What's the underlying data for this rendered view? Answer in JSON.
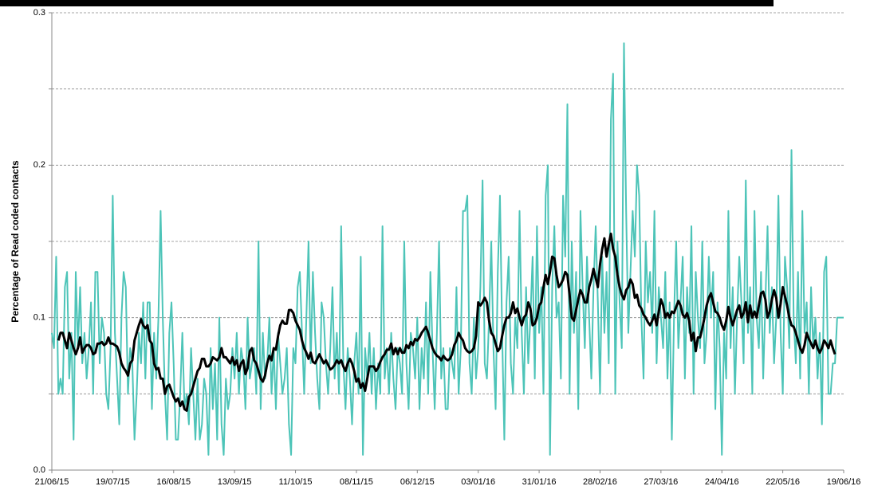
{
  "chart_data": {
    "type": "line",
    "y_label": "Percentage of Read coded contacts",
    "categories": [
      "21/06/15",
      null,
      null,
      null,
      null,
      null,
      null,
      null,
      null,
      null,
      null,
      null,
      null,
      null,
      null,
      null,
      null,
      null,
      null,
      null,
      null,
      null,
      null,
      null,
      null,
      null,
      null,
      null,
      "19/07/15",
      null,
      null,
      null,
      null,
      null,
      null,
      null,
      null,
      null,
      null,
      null,
      null,
      null,
      null,
      null,
      null,
      null,
      null,
      null,
      null,
      null,
      null,
      null,
      null,
      null,
      null,
      null,
      "16/08/15",
      null,
      null,
      null,
      null,
      null,
      null,
      null,
      null,
      null,
      null,
      null,
      null,
      null,
      null,
      null,
      null,
      null,
      null,
      null,
      null,
      null,
      null,
      null,
      null,
      null,
      null,
      null,
      "13/09/15",
      null,
      null,
      null,
      null,
      null,
      null,
      null,
      null,
      null,
      null,
      null,
      null,
      null,
      null,
      null,
      null,
      null,
      null,
      null,
      null,
      null,
      null,
      null,
      null,
      null,
      null,
      null,
      "11/10/15",
      null,
      null,
      null,
      null,
      null,
      null,
      null,
      null,
      null,
      null,
      null,
      null,
      null,
      null,
      null,
      null,
      null,
      null,
      null,
      null,
      null,
      null,
      null,
      null,
      null,
      null,
      null,
      "08/11/15",
      null,
      null,
      null,
      null,
      null,
      null,
      null,
      null,
      null,
      null,
      null,
      null,
      null,
      null,
      null,
      null,
      null,
      null,
      null,
      null,
      null,
      null,
      null,
      null,
      null,
      null,
      null,
      "06/12/15",
      null,
      null,
      null,
      null,
      null,
      null,
      null,
      null,
      null,
      null,
      null,
      null,
      null,
      null,
      null,
      null,
      null,
      null,
      null,
      null,
      null,
      null,
      null,
      null,
      null,
      null,
      null,
      "03/01/16",
      null,
      null,
      null,
      null,
      null,
      null,
      null,
      null,
      null,
      null,
      null,
      null,
      null,
      null,
      null,
      null,
      null,
      null,
      null,
      null,
      null,
      null,
      null,
      null,
      null,
      null,
      null,
      "31/01/16",
      null,
      null,
      null,
      null,
      null,
      null,
      null,
      null,
      null,
      null,
      null,
      null,
      null,
      null,
      null,
      null,
      null,
      null,
      null,
      null,
      null,
      null,
      null,
      null,
      null,
      null,
      null,
      "28/02/16",
      null,
      null,
      null,
      null,
      null,
      null,
      null,
      null,
      null,
      null,
      null,
      null,
      null,
      null,
      null,
      null,
      null,
      null,
      null,
      null,
      null,
      null,
      null,
      null,
      null,
      null,
      null,
      "27/03/16",
      null,
      null,
      null,
      null,
      null,
      null,
      null,
      null,
      null,
      null,
      null,
      null,
      null,
      null,
      null,
      null,
      null,
      null,
      null,
      null,
      null,
      null,
      null,
      null,
      null,
      null,
      null,
      "24/04/16",
      null,
      null,
      null,
      null,
      null,
      null,
      null,
      null,
      null,
      null,
      null,
      null,
      null,
      null,
      null,
      null,
      null,
      null,
      null,
      null,
      null,
      null,
      null,
      null,
      null,
      null,
      null,
      "22/05/16",
      null,
      null,
      null,
      null,
      null,
      null,
      null,
      null,
      null,
      null,
      null,
      null,
      null,
      null,
      null,
      null,
      null,
      null,
      null,
      null,
      null,
      null,
      null,
      null,
      null,
      null,
      null,
      "19/06/16"
    ],
    "series": [
      {
        "color": "#4dc4b8",
        "width": 2,
        "values": [
          0.09,
          0.08,
          0.14,
          0.05,
          0.06,
          0.05,
          0.12,
          0.13,
          0.06,
          0.09,
          0.02,
          0.13,
          0.08,
          0.12,
          0.07,
          0.09,
          0.06,
          0.08,
          0.11,
          0.05,
          0.13,
          0.13,
          0.07,
          0.1,
          0.09,
          0.05,
          0.04,
          0.08,
          0.18,
          0.09,
          0.06,
          0.03,
          0.1,
          0.13,
          0.12,
          0.05,
          0.08,
          0.07,
          0.02,
          0.05,
          0.09,
          0.07,
          0.11,
          0.06,
          0.11,
          0.11,
          0.04,
          0.09,
          0.06,
          0.1,
          0.17,
          0.1,
          0.05,
          0.02,
          0.09,
          0.11,
          0.07,
          0.02,
          0.02,
          0.05,
          0.09,
          0.04,
          0.05,
          0.03,
          0.08,
          0.05,
          0.02,
          0.06,
          0.02,
          0.03,
          0.06,
          0.05,
          0.01,
          0.08,
          0.04,
          0.07,
          0.02,
          0.1,
          0.03,
          0.01,
          0.06,
          0.04,
          0.05,
          0.08,
          0.06,
          0.09,
          0.05,
          0.08,
          0.07,
          0.04,
          0.1,
          0.06,
          0.07,
          0.08,
          0.05,
          0.15,
          0.04,
          0.09,
          0.06,
          0.07,
          0.1,
          0.05,
          0.08,
          0.04,
          0.09,
          0.07,
          0.05,
          0.06,
          0.08,
          0.03,
          0.01,
          0.08,
          0.07,
          0.12,
          0.13,
          0.09,
          0.05,
          0.1,
          0.15,
          0.07,
          0.13,
          0.09,
          0.06,
          0.04,
          0.11,
          0.1,
          0.07,
          0.05,
          0.08,
          0.12,
          0.06,
          0.09,
          0.05,
          0.16,
          0.07,
          0.04,
          0.08,
          0.06,
          0.03,
          0.07,
          0.09,
          0.05,
          0.14,
          0.01,
          0.08,
          0.06,
          0.09,
          0.05,
          0.08,
          0.04,
          0.07,
          0.05,
          0.16,
          0.06,
          0.08,
          0.05,
          0.09,
          0.06,
          0.04,
          0.08,
          0.07,
          0.05,
          0.15,
          0.07,
          0.04,
          0.09,
          0.08,
          0.06,
          0.1,
          0.04,
          0.08,
          0.06,
          0.11,
          0.05,
          0.13,
          0.08,
          0.04,
          0.09,
          0.15,
          0.06,
          0.08,
          0.04,
          0.04,
          0.08,
          0.07,
          0.06,
          0.12,
          0.05,
          0.08,
          0.17,
          0.17,
          0.18,
          0.07,
          0.05,
          0.1,
          0.06,
          0.08,
          0.12,
          0.19,
          0.07,
          0.06,
          0.1,
          0.15,
          0.08,
          0.04,
          0.13,
          0.18,
          0.09,
          0.02,
          0.11,
          0.14,
          0.07,
          0.05,
          0.1,
          0.08,
          0.17,
          0.09,
          0.05,
          0.12,
          0.07,
          0.1,
          0.14,
          0.06,
          0.16,
          0.09,
          0.12,
          0.05,
          0.18,
          0.2,
          0.01,
          0.12,
          0.16,
          0.1,
          0.11,
          0.06,
          0.18,
          0.14,
          0.24,
          0.05,
          0.15,
          0.09,
          0.13,
          0.04,
          0.17,
          0.12,
          0.08,
          0.14,
          0.1,
          0.06,
          0.12,
          0.16,
          0.11,
          0.05,
          0.14,
          0.09,
          0.13,
          0.07,
          0.23,
          0.26,
          0.05,
          0.15,
          0.11,
          0.08,
          0.28,
          0.17,
          0.09,
          0.13,
          0.17,
          0.14,
          0.2,
          0.18,
          0.1,
          0.06,
          0.15,
          0.11,
          0.13,
          0.09,
          0.17,
          0.07,
          0.12,
          0.1,
          0.08,
          0.13,
          0.06,
          0.11,
          0.02,
          0.1,
          0.15,
          0.08,
          0.11,
          0.14,
          0.06,
          0.12,
          0.09,
          0.16,
          0.05,
          0.13,
          0.1,
          0.08,
          0.15,
          0.07,
          0.09,
          0.14,
          0.1,
          0.13,
          0.04,
          0.11,
          0.08,
          0.01,
          0.09,
          0.06,
          0.17,
          0.08,
          0.12,
          0.05,
          0.1,
          0.14,
          0.11,
          0.07,
          0.19,
          0.09,
          0.12,
          0.05,
          0.17,
          0.1,
          0.08,
          0.13,
          0.06,
          0.11,
          0.16,
          0.09,
          0.12,
          0.07,
          0.1,
          0.18,
          0.09,
          0.05,
          0.14,
          0.12,
          0.08,
          0.21,
          0.1,
          0.07,
          0.13,
          0.06,
          0.17,
          0.09,
          0.11,
          0.05,
          0.12,
          0.08,
          0.1,
          0.06,
          0.09,
          0.03,
          0.13,
          0.14,
          0.05,
          0.05,
          0.07,
          0.07,
          0.1,
          0.1,
          0.1,
          0.1
        ]
      },
      {
        "color": "#000000",
        "width": 3,
        "values": [
          null,
          null,
          null,
          0.085,
          0.09,
          0.09,
          0.085,
          0.08,
          0.09,
          0.085,
          0.08,
          0.076,
          0.08,
          0.087,
          0.077,
          0.08,
          0.082,
          0.082,
          0.08,
          0.076,
          0.077,
          0.083,
          0.083,
          0.084,
          0.082,
          0.083,
          0.087,
          0.083,
          0.083,
          0.082,
          0.081,
          0.077,
          0.07,
          0.067,
          0.065,
          0.062,
          0.07,
          0.072,
          0.085,
          0.09,
          0.095,
          0.099,
          0.095,
          0.093,
          0.095,
          0.085,
          0.083,
          0.07,
          0.066,
          0.067,
          0.06,
          0.06,
          0.05,
          0.055,
          0.056,
          0.052,
          0.048,
          0.045,
          0.047,
          0.042,
          0.045,
          0.04,
          0.039,
          0.048,
          0.05,
          0.055,
          0.06,
          0.065,
          0.067,
          0.073,
          0.073,
          0.068,
          0.068,
          0.07,
          0.074,
          0.073,
          0.072,
          0.074,
          0.08,
          0.074,
          0.074,
          0.072,
          0.07,
          0.074,
          0.069,
          0.072,
          0.065,
          0.07,
          0.072,
          0.063,
          0.067,
          0.078,
          0.08,
          0.072,
          0.07,
          0.065,
          0.06,
          0.058,
          0.062,
          0.07,
          0.075,
          0.072,
          0.08,
          0.079,
          0.088,
          0.095,
          0.098,
          0.096,
          0.096,
          0.105,
          0.105,
          0.103,
          0.098,
          0.095,
          0.092,
          0.085,
          0.08,
          0.077,
          0.073,
          0.077,
          0.071,
          0.07,
          0.073,
          0.076,
          0.073,
          0.07,
          0.072,
          0.069,
          0.066,
          0.067,
          0.069,
          0.072,
          0.07,
          0.072,
          0.068,
          0.065,
          0.07,
          0.073,
          0.07,
          0.065,
          0.058,
          0.06,
          0.054,
          0.057,
          0.052,
          0.06,
          0.068,
          0.068,
          0.068,
          0.065,
          0.067,
          0.071,
          0.074,
          0.076,
          0.079,
          0.079,
          0.083,
          0.076,
          0.08,
          0.076,
          0.08,
          0.077,
          0.077,
          0.082,
          0.08,
          0.084,
          0.082,
          0.086,
          0.085,
          0.087,
          0.09,
          0.092,
          0.094,
          0.09,
          0.085,
          0.08,
          0.077,
          0.075,
          0.074,
          0.072,
          0.075,
          0.073,
          0.072,
          0.073,
          0.076,
          0.082,
          0.085,
          0.09,
          0.087,
          0.085,
          0.08,
          0.078,
          0.077,
          0.078,
          0.08,
          0.088,
          0.11,
          0.108,
          0.11,
          0.113,
          0.11,
          0.098,
          0.09,
          0.088,
          0.083,
          0.078,
          0.08,
          0.088,
          0.095,
          0.1,
          0.1,
          0.103,
          0.11,
          0.103,
          0.106,
          0.1,
          0.095,
          0.1,
          0.102,
          0.11,
          0.106,
          0.095,
          0.096,
          0.1,
          0.108,
          0.11,
          0.12,
          0.128,
          0.122,
          0.13,
          0.14,
          0.139,
          0.128,
          0.12,
          0.122,
          0.125,
          0.13,
          0.128,
          0.115,
          0.1,
          0.098,
          0.105,
          0.112,
          0.118,
          0.115,
          0.11,
          0.11,
          0.12,
          0.125,
          0.132,
          0.126,
          0.12,
          0.135,
          0.145,
          0.152,
          0.14,
          0.148,
          0.155,
          0.145,
          0.14,
          0.128,
          0.12,
          0.115,
          0.112,
          0.118,
          0.12,
          0.125,
          0.122,
          0.113,
          0.115,
          0.108,
          0.106,
          0.102,
          0.1,
          0.097,
          0.095,
          0.098,
          0.102,
          0.095,
          0.104,
          0.112,
          0.108,
          0.1,
          0.103,
          0.1,
          0.104,
          0.103,
          0.107,
          0.111,
          0.108,
          0.102,
          0.1,
          0.103,
          0.098,
          0.085,
          0.09,
          0.078,
          0.087,
          0.087,
          0.093,
          0.1,
          0.108,
          0.113,
          0.116,
          0.11,
          0.104,
          0.103,
          0.1,
          0.095,
          0.092,
          0.098,
          0.107,
          0.1,
          0.095,
          0.1,
          0.105,
          0.108,
          0.1,
          0.103,
          0.11,
          0.097,
          0.108,
          0.1,
          0.104,
          0.1,
          0.108,
          0.116,
          0.117,
          0.112,
          0.1,
          0.104,
          0.112,
          0.118,
          0.113,
          0.1,
          0.109,
          0.12,
          0.114,
          0.108,
          0.1,
          0.095,
          0.094,
          0.09,
          0.085,
          0.08,
          0.077,
          0.082,
          0.09,
          0.086,
          0.083,
          0.08,
          0.085,
          0.08,
          0.077,
          0.08,
          0.085,
          0.083,
          0.08,
          0.085,
          0.08,
          0.076,
          null,
          null,
          null,
          null
        ]
      }
    ],
    "ylim": [
      0,
      0.3
    ],
    "yticks": [
      {
        "value": 0,
        "label": "0.0"
      },
      0.1,
      0.2,
      0.3
    ],
    "yminor": [
      0.05,
      0.15,
      0.25
    ],
    "grid": true
  }
}
